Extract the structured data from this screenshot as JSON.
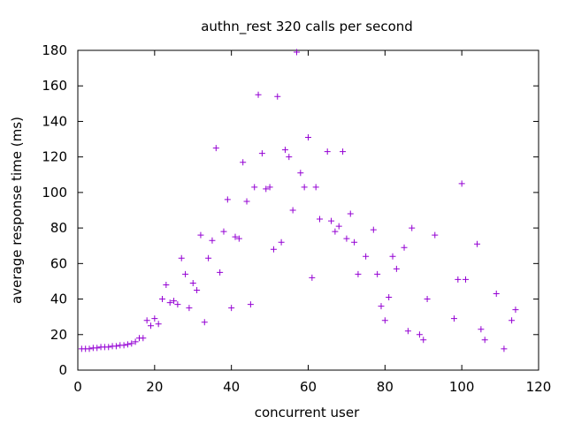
{
  "chart_data": {
    "type": "scatter",
    "title": "authn_rest 320 calls per second",
    "xlabel": "concurrent user",
    "ylabel": "average response time (ms)",
    "xlim": [
      0,
      120
    ],
    "ylim": [
      0,
      180
    ],
    "xticks": [
      0,
      20,
      40,
      60,
      80,
      100,
      120
    ],
    "yticks": [
      0,
      20,
      40,
      60,
      80,
      100,
      120,
      140,
      160,
      180
    ],
    "grid": false,
    "legend": "none",
    "marker": "plus",
    "color": "#9400d3",
    "points": [
      [
        1,
        12
      ],
      [
        2,
        12
      ],
      [
        3,
        12
      ],
      [
        4,
        12.5
      ],
      [
        5,
        12.5
      ],
      [
        6,
        13
      ],
      [
        7,
        13
      ],
      [
        8,
        13
      ],
      [
        9,
        13.5
      ],
      [
        10,
        13.5
      ],
      [
        11,
        14
      ],
      [
        12,
        14
      ],
      [
        13,
        14.5
      ],
      [
        14,
        15
      ],
      [
        15,
        16
      ],
      [
        16,
        18
      ],
      [
        17,
        18
      ],
      [
        18,
        28
      ],
      [
        19,
        25
      ],
      [
        20,
        29
      ],
      [
        21,
        26
      ],
      [
        22,
        40
      ],
      [
        23,
        48
      ],
      [
        24,
        38
      ],
      [
        25,
        39
      ],
      [
        26,
        37
      ],
      [
        27,
        63
      ],
      [
        28,
        54
      ],
      [
        29,
        35
      ],
      [
        30,
        49
      ],
      [
        31,
        45
      ],
      [
        32,
        76
      ],
      [
        33,
        27
      ],
      [
        34,
        63
      ],
      [
        35,
        73
      ],
      [
        36,
        125
      ],
      [
        37,
        55
      ],
      [
        38,
        78
      ],
      [
        39,
        96
      ],
      [
        40,
        35
      ],
      [
        41,
        75
      ],
      [
        42,
        74
      ],
      [
        43,
        117
      ],
      [
        44,
        95
      ],
      [
        45,
        37
      ],
      [
        46,
        103
      ],
      [
        47,
        155
      ],
      [
        48,
        122
      ],
      [
        49,
        102
      ],
      [
        50,
        103
      ],
      [
        51,
        68
      ],
      [
        52,
        154
      ],
      [
        53,
        72
      ],
      [
        54,
        124
      ],
      [
        55,
        120
      ],
      [
        56,
        90
      ],
      [
        57,
        179
      ],
      [
        58,
        111
      ],
      [
        59,
        103
      ],
      [
        60,
        131
      ],
      [
        61,
        52
      ],
      [
        62,
        103
      ],
      [
        63,
        85
      ],
      [
        65,
        123
      ],
      [
        66,
        84
      ],
      [
        67,
        78
      ],
      [
        68,
        81
      ],
      [
        69,
        123
      ],
      [
        70,
        74
      ],
      [
        71,
        88
      ],
      [
        72,
        72
      ],
      [
        73,
        54
      ],
      [
        75,
        64
      ],
      [
        77,
        79
      ],
      [
        78,
        54
      ],
      [
        79,
        36
      ],
      [
        80,
        28
      ],
      [
        81,
        41
      ],
      [
        82,
        64
      ],
      [
        83,
        57
      ],
      [
        85,
        69
      ],
      [
        86,
        22
      ],
      [
        87,
        80
      ],
      [
        89,
        20
      ],
      [
        90,
        17
      ],
      [
        91,
        40
      ],
      [
        93,
        76
      ],
      [
        98,
        29
      ],
      [
        99,
        51
      ],
      [
        100,
        105
      ],
      [
        101,
        51
      ],
      [
        104,
        71
      ],
      [
        105,
        23
      ],
      [
        106,
        17
      ],
      [
        109,
        43
      ],
      [
        111,
        12
      ],
      [
        113,
        28
      ],
      [
        114,
        34
      ]
    ]
  }
}
